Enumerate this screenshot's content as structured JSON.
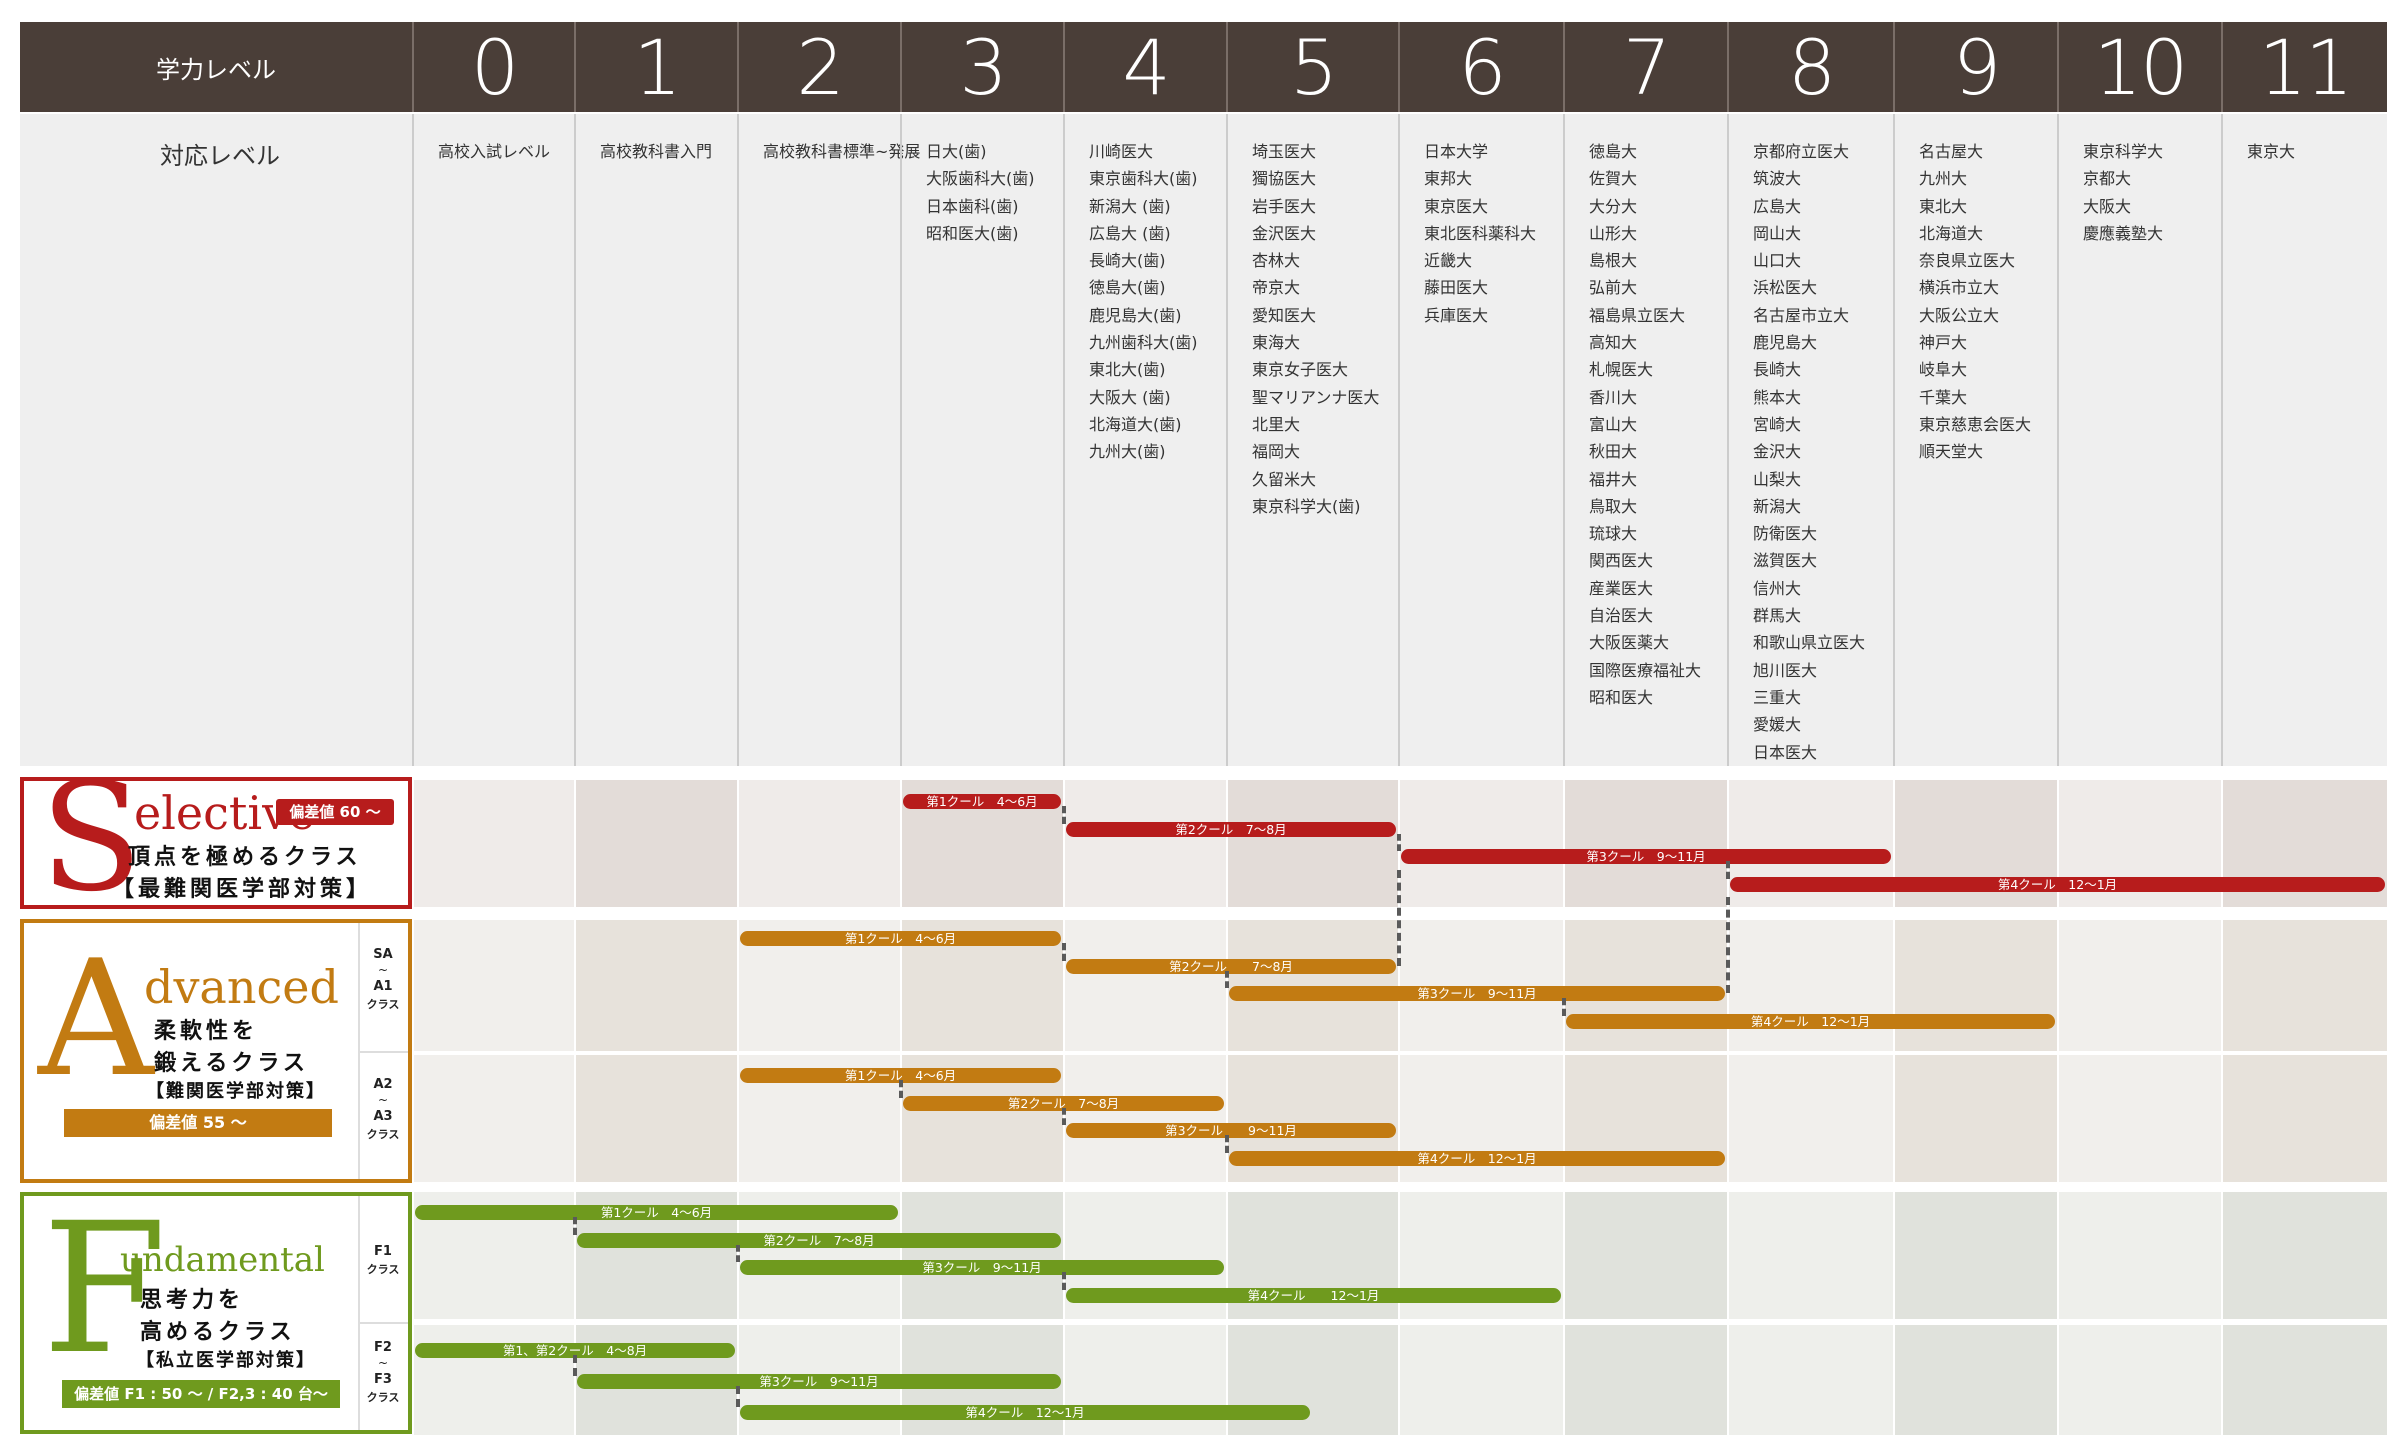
{
  "header": {
    "label": "学力レベル",
    "levels": [
      "0",
      "1",
      "2",
      "3",
      "4",
      "5",
      "6",
      "7",
      "8",
      "9",
      "10",
      "11"
    ]
  },
  "universities": {
    "label": "対応レベル",
    "columns": [
      [
        "高校入試レベル"
      ],
      [
        "高校教科書入門"
      ],
      [
        "高校教科書標準~発展"
      ],
      [
        "日大(歯)",
        "大阪歯科大(歯)",
        "日本歯科(歯)",
        "昭和医大(歯)"
      ],
      [
        "川崎医大",
        "東京歯科大(歯)",
        "新潟大 (歯)",
        "広島大 (歯)",
        "長崎大(歯)",
        "徳島大(歯)",
        "鹿児島大(歯)",
        "九州歯科大(歯)",
        "東北大(歯)",
        "大阪大 (歯)",
        "北海道大(歯)",
        "九州大(歯)"
      ],
      [
        "埼玉医大",
        "獨協医大",
        "岩手医大",
        "金沢医大",
        "杏林大",
        "帝京大",
        "愛知医大",
        "東海大",
        "東京女子医大",
        "聖マリアンナ医大",
        "北里大",
        "福岡大",
        "久留米大",
        "東京科学大(歯)"
      ],
      [
        "日本大学",
        "東邦大",
        "東京医大",
        "東北医科薬科大",
        "近畿大",
        "藤田医大",
        "兵庫医大"
      ],
      [
        "徳島大",
        "佐賀大",
        "大分大",
        "山形大",
        "島根大",
        "弘前大",
        "福島県立医大",
        "高知大",
        "札幌医大",
        "香川大",
        "富山大",
        "秋田大",
        "福井大",
        "鳥取大",
        "琉球大",
        "関西医大",
        "産業医大",
        "自治医大",
        "大阪医薬大",
        "国際医療福祉大",
        "昭和医大"
      ],
      [
        "京都府立医大",
        "筑波大",
        "広島大",
        "岡山大",
        "山口大",
        "浜松医大",
        "名古屋市立大",
        "鹿児島大",
        "長崎大",
        "熊本大",
        "宮崎大",
        "金沢大",
        "山梨大",
        "新潟大",
        "防衛医大",
        "滋賀医大",
        "信州大",
        "群馬大",
        "和歌山県立医大",
        "旭川医大",
        "三重大",
        "愛媛大",
        "日本医大"
      ],
      [
        "名古屋大",
        "九州大",
        "東北大",
        "北海道大",
        "奈良県立医大",
        "横浜市立大",
        "大阪公立大",
        "神戸大",
        "岐阜大",
        "千葉大",
        "東京慈恵会医大",
        "順天堂大"
      ],
      [
        "東京科学大",
        "京都大",
        "大阪大",
        "慶應義塾大"
      ],
      [
        "東京大"
      ]
    ]
  },
  "classes": {
    "selective": {
      "initial": "S",
      "word": "elective",
      "tag": "偏差値 60 ～",
      "line1": "頂点を極めるクラス",
      "line2": "【最難関医学部対策】",
      "color": "#b71c1c",
      "bars": [
        {
          "start": 3,
          "end": 4,
          "label": "第1クール　4～6月"
        },
        {
          "start": 4,
          "end": 6,
          "label": "第2クール　7～8月"
        },
        {
          "start": 6,
          "end": 9,
          "label": "第3クール　9～11月"
        },
        {
          "start": 8,
          "end": 12,
          "label": "第4クール　12～1月"
        }
      ]
    },
    "advanced": {
      "initial": "A",
      "word": "dvanced",
      "tag": "偏差値 55 ～",
      "line1": "柔軟性を",
      "line2": "鍛えるクラス",
      "line3": "【難関医学部対策】",
      "color": "#c27b12",
      "sub1": {
        "top": "SA",
        "tilde": "~",
        "bottom": "A1",
        "cls": "クラス"
      },
      "sub2": {
        "top": "A2",
        "tilde": "~",
        "bottom": "A3",
        "cls": "クラス"
      },
      "bars1": [
        {
          "start": 2,
          "end": 4,
          "label": "第1クール　4～6月"
        },
        {
          "start": 4,
          "end": 6,
          "label": "第2クール　　7～8月"
        },
        {
          "start": 5,
          "end": 8,
          "label": "第3クール　9～11月"
        },
        {
          "start": 7,
          "end": 10,
          "label": "第4クール　12～1月"
        }
      ],
      "bars2": [
        {
          "start": 2,
          "end": 4,
          "label": "第1クール　4～6月"
        },
        {
          "start": 3,
          "end": 5,
          "label": "第2クール　7～8月"
        },
        {
          "start": 4,
          "end": 6,
          "label": "第3クール　　9～11月"
        },
        {
          "start": 5,
          "end": 8,
          "label": "第4クール　12～1月"
        }
      ]
    },
    "fundamental": {
      "initial": "F",
      "word": "undamental",
      "tag": "偏差値 F1 : 50 ～ / F2,3 : 40 台～",
      "line1": "思考力を",
      "line2": "高めるクラス",
      "line3": "【私立医学部対策】",
      "color": "#6f9a1e",
      "sub1": {
        "top": "F1",
        "tilde": "",
        "bottom": "",
        "cls": "クラス"
      },
      "sub2": {
        "top": "F2",
        "tilde": "~",
        "bottom": "F3",
        "cls": "クラス"
      },
      "bars1": [
        {
          "start": 0,
          "end": 3,
          "label": "第1クール　4～6月"
        },
        {
          "start": 1,
          "end": 4,
          "label": "第2クール　7～8月"
        },
        {
          "start": 2,
          "end": 5,
          "label": "第3クール　9～11月"
        },
        {
          "start": 4,
          "end": 7,
          "label": "第4クール　　12～1月"
        }
      ],
      "bars2": [
        {
          "start": 0,
          "end": 2,
          "label": "第1、第2クール　4～8月"
        },
        {
          "start": 1,
          "end": 4,
          "label": "第3クール　9～11月"
        },
        {
          "start": 2,
          "end": 5.5,
          "label": "第4クール　12～1月"
        }
      ]
    }
  }
}
